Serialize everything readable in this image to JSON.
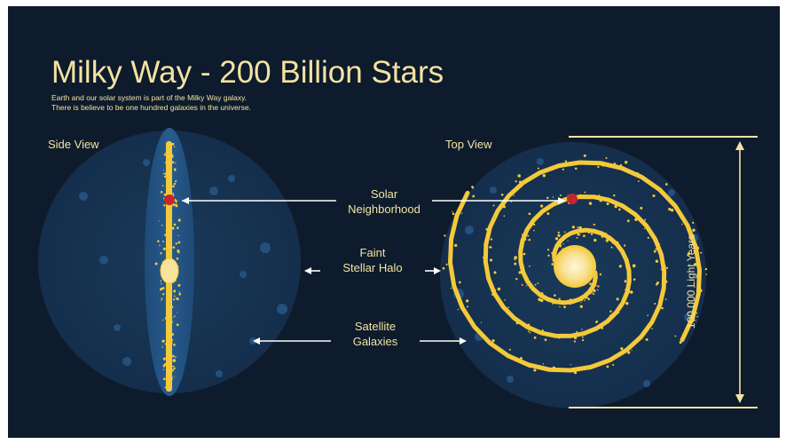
{
  "colors": {
    "background": "#0d1b2c",
    "text": "#f3e3a2",
    "galaxy_yellow": "#f4c93a",
    "galaxy_core": "#f8e39a",
    "halo": "#163454",
    "solar_red": "#c4262b",
    "arrow_white": "#ffffff"
  },
  "title": "Milky Way - 200 Billion Stars",
  "subtitle_lines": [
    "Earth and our solar system is part of the Milky Way galaxy.",
    "There is believe to be one hundred galaxies in the universe."
  ],
  "side_view": {
    "label": "Side View"
  },
  "top_view": {
    "label": "Top View",
    "diameter_label": "100 000 Light Years"
  },
  "center_labels": [
    {
      "line1": "Solar",
      "line2": "Neighborhood"
    },
    {
      "line1": "Faint",
      "line2": "Stellar Halo"
    },
    {
      "line1": "Satellite",
      "line2": "Galaxies"
    }
  ],
  "icons": {
    "arrows": "arrow-icon",
    "solar_marker": "sun-dot-icon",
    "dimension": "dimension-line-icon"
  }
}
